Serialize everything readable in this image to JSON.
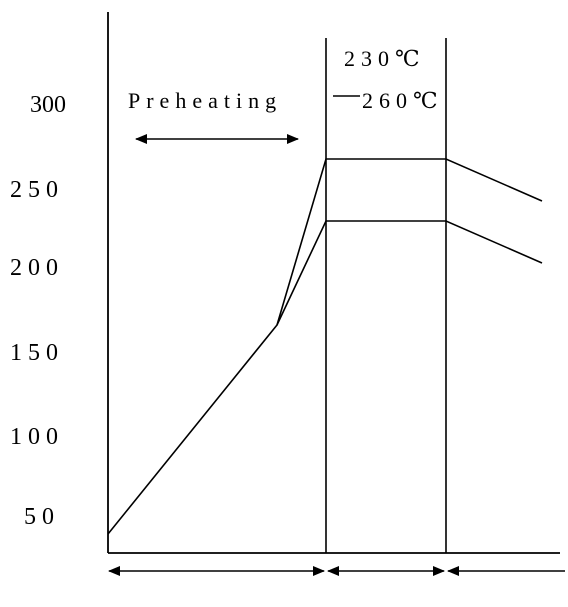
{
  "diagram": {
    "y_tick_labels": [
      "300",
      "250",
      "200",
      "150",
      "100",
      "50"
    ],
    "preheating_label": "Preheating",
    "label_230": "230℃",
    "label_260": "260℃",
    "colors": {
      "line": "#000000",
      "background": "#ffffff"
    }
  }
}
